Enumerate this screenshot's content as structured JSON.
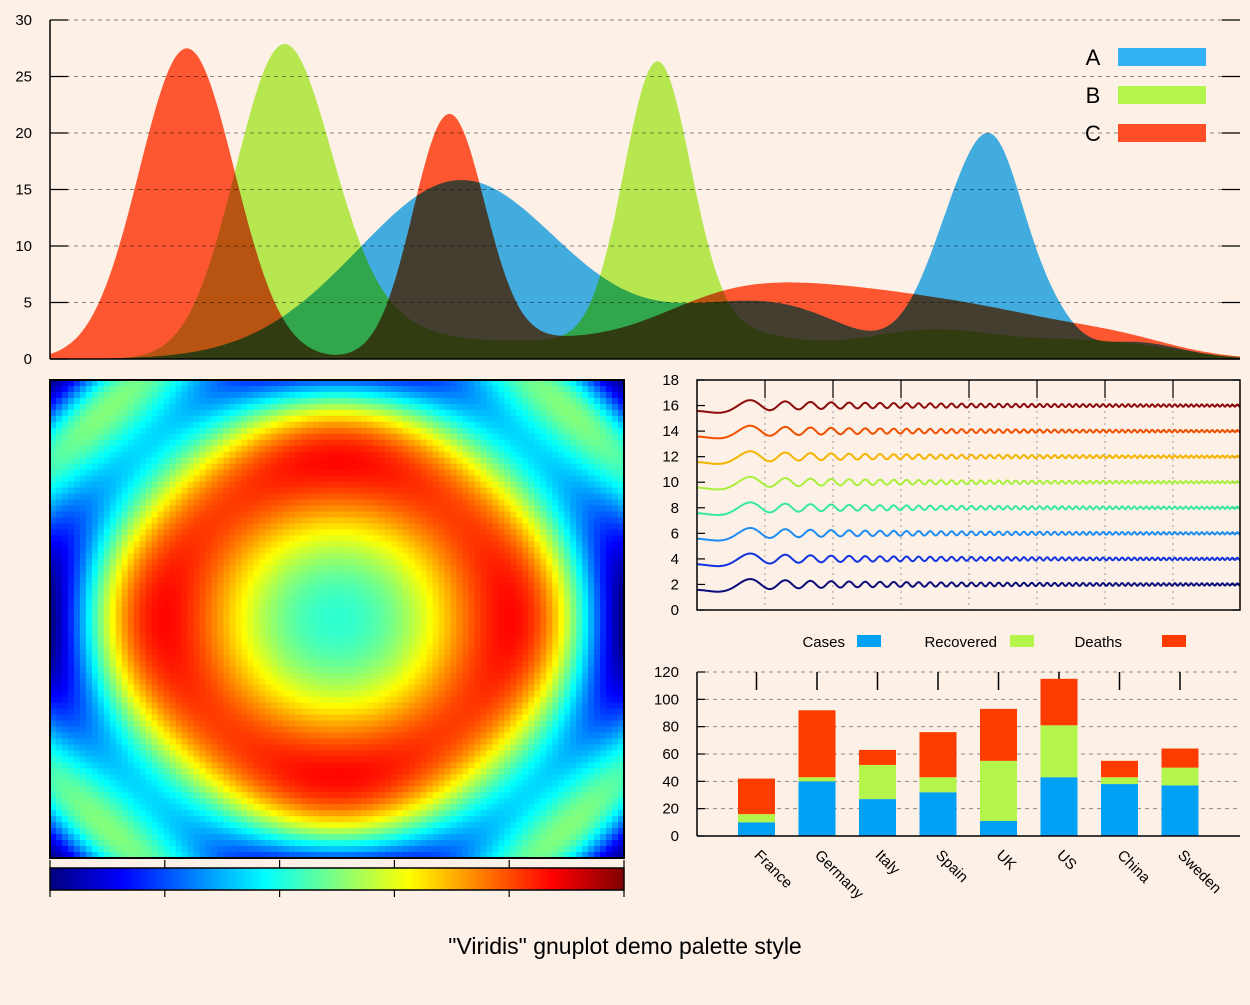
{
  "caption": "\"Viridis\" gnuplot demo palette style",
  "chart_data": [
    {
      "type": "area",
      "title": "",
      "ylim": [
        0,
        30
      ],
      "xlim": [
        0,
        100
      ],
      "yticks": [
        "0",
        "5",
        "10",
        "15",
        "20",
        "25",
        "30"
      ],
      "grid": true,
      "legend_placement": "top-right",
      "series": [
        {
          "name": "A",
          "color": "#33b1f5",
          "peaks": [
            [
              30,
              7,
              8
            ],
            [
              36,
              7,
              7
            ],
            [
              42,
              4,
              10
            ],
            [
              58,
              3,
              6
            ],
            [
              64,
              2,
              5
            ],
            [
              78,
              17,
              3.5
            ],
            [
              80,
              4,
              2
            ],
            [
              91,
              1.5,
              4
            ],
            [
              84,
              2,
              2
            ]
          ]
        },
        {
          "name": "B",
          "color": "#b3f54a",
          "peaks": [
            [
              19.5,
              26.5,
              4
            ],
            [
              26,
              3,
              5
            ],
            [
              51,
              24,
              2.8
            ],
            [
              40,
              1.5,
              8
            ],
            [
              56,
              2.5,
              6
            ],
            [
              74,
              2.5,
              6
            ],
            [
              88,
              1.5,
              6
            ]
          ]
        },
        {
          "name": "C",
          "color": "#ff4e26",
          "peaks": [
            [
              11.5,
              27.5,
              4
            ],
            [
              33.5,
              21,
              3
            ],
            [
              41,
              1.5,
              6
            ],
            [
              55,
              3.5,
              6
            ],
            [
              62,
              3.5,
              6
            ],
            [
              70,
              3.5,
              6
            ],
            [
              78,
              2,
              6
            ],
            [
              82,
              1.5,
              6
            ],
            [
              90,
              1.5,
              5
            ]
          ]
        }
      ]
    },
    {
      "type": "heatmap",
      "title": "",
      "palette": [
        "#00007f",
        "#0000ff",
        "#007fff",
        "#00ffff",
        "#7fff7f",
        "#ffff00",
        "#ff7f00",
        "#ff0000",
        "#7f0000"
      ],
      "colorbox_ticks": 6
    },
    {
      "type": "line",
      "title": "",
      "ylim": [
        0,
        18
      ],
      "yticks": [
        "0",
        "2",
        "4",
        "6",
        "8",
        "10",
        "12",
        "14",
        "16",
        "18"
      ],
      "series": [
        {
          "offset": 2,
          "color": "#0c0c7a"
        },
        {
          "offset": 4,
          "color": "#1234e0"
        },
        {
          "offset": 6,
          "color": "#1e8cf0"
        },
        {
          "offset": 8,
          "color": "#38e8a0"
        },
        {
          "offset": 10,
          "color": "#a8f03c"
        },
        {
          "offset": 12,
          "color": "#f5b400"
        },
        {
          "offset": 14,
          "color": "#f05000"
        },
        {
          "offset": 16,
          "color": "#8c0c0c"
        }
      ]
    },
    {
      "type": "bar",
      "stacked": true,
      "title": "",
      "ylim": [
        0,
        120
      ],
      "yticks": [
        "0",
        "20",
        "40",
        "60",
        "80",
        "100",
        "120"
      ],
      "grid": true,
      "legend_placement": "top",
      "categories": [
        "France",
        "Germany",
        "Italy",
        "Spain",
        "UK",
        "US",
        "China",
        "Sweden"
      ],
      "series": [
        {
          "name": "Cases",
          "color": "#00a0f5",
          "values": [
            10,
            40,
            27,
            32,
            11,
            43,
            38,
            37
          ]
        },
        {
          "name": "Recovered",
          "color": "#b3f54a",
          "values": [
            6,
            3,
            25,
            11,
            44,
            38,
            5,
            13
          ]
        },
        {
          "name": "Deaths",
          "color": "#ff3c00",
          "values": [
            26,
            49,
            11,
            33,
            38,
            34,
            12,
            14
          ]
        }
      ]
    }
  ]
}
